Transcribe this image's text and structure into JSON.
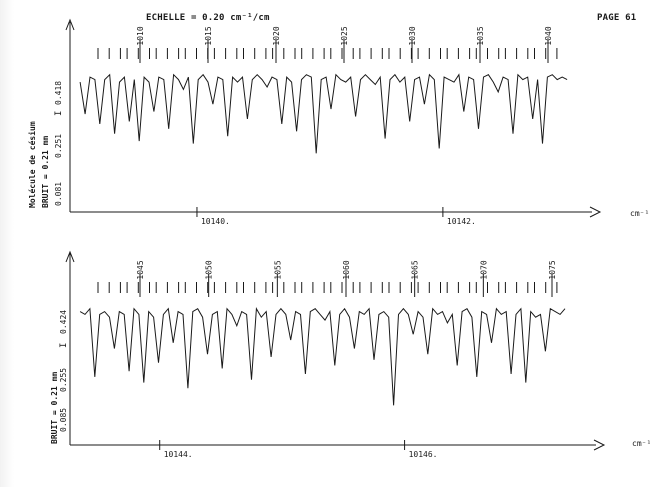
{
  "header": {
    "scale_label": "ECHELLE = 0.20 cm⁻¹/cm",
    "page_number": "PAGE 61"
  },
  "chart_data": [
    {
      "type": "line",
      "title": "",
      "molecule_label": "Molécule de césium",
      "noise_label": "BRUIT = 0.21 mm",
      "ylabel": "I",
      "y_ticks": [
        "0.081",
        "0.251",
        "0.418"
      ],
      "x_unit": "cm⁻¹",
      "x_ticks": [
        {
          "value": 10140,
          "label": "10140."
        },
        {
          "value": 10142,
          "label": "10142."
        }
      ],
      "xlim": [
        10139.0,
        10143.05
      ],
      "ylim": [
        0.0,
        0.5
      ],
      "line_numbers": [
        "1010",
        "1015",
        "1020",
        "1025",
        "1030",
        "1035",
        "1040"
      ],
      "series": [
        {
          "x": [
            10139.05,
            10139.09,
            10139.13,
            10139.17,
            10139.21,
            10139.25,
            10139.29,
            10139.33,
            10139.37,
            10139.41,
            10139.45,
            10139.49,
            10139.53,
            10139.57,
            10139.61,
            10139.65,
            10139.69,
            10139.73,
            10139.77,
            10139.81,
            10139.85,
            10139.89,
            10139.93,
            10139.97,
            10140.01,
            10140.05,
            10140.09,
            10140.13,
            10140.17,
            10140.21,
            10140.25,
            10140.29,
            10140.33,
            10140.37,
            10140.41,
            10140.45,
            10140.49,
            10140.53,
            10140.57,
            10140.61,
            10140.65,
            10140.69,
            10140.73,
            10140.77,
            10140.81,
            10140.85,
            10140.89,
            10140.93,
            10140.97,
            10141.01,
            10141.05,
            10141.09,
            10141.13,
            10141.17,
            10141.21,
            10141.25,
            10141.29,
            10141.33,
            10141.37,
            10141.41,
            10141.45,
            10141.49,
            10141.53,
            10141.57,
            10141.61,
            10141.65,
            10141.69,
            10141.73,
            10141.77,
            10141.81,
            10141.85,
            10141.89,
            10141.93,
            10141.97,
            10142.01,
            10142.05,
            10142.09,
            10142.13,
            10142.17,
            10142.21,
            10142.25,
            10142.29,
            10142.33,
            10142.37,
            10142.41,
            10142.45,
            10142.49,
            10142.53,
            10142.57,
            10142.61,
            10142.65,
            10142.69,
            10142.73,
            10142.77,
            10142.81,
            10142.85,
            10142.89,
            10142.93,
            10142.97,
            10143.01
          ],
          "y": [
            0.39,
            0.26,
            0.41,
            0.4,
            0.22,
            0.4,
            0.42,
            0.18,
            0.39,
            0.41,
            0.23,
            0.4,
            0.15,
            0.41,
            0.39,
            0.27,
            0.41,
            0.4,
            0.2,
            0.42,
            0.4,
            0.36,
            0.41,
            0.14,
            0.4,
            0.42,
            0.39,
            0.3,
            0.41,
            0.4,
            0.17,
            0.41,
            0.39,
            0.41,
            0.24,
            0.4,
            0.42,
            0.4,
            0.37,
            0.41,
            0.4,
            0.22,
            0.41,
            0.39,
            0.19,
            0.4,
            0.42,
            0.41,
            0.1,
            0.4,
            0.41,
            0.28,
            0.42,
            0.4,
            0.39,
            0.41,
            0.25,
            0.4,
            0.42,
            0.4,
            0.38,
            0.41,
            0.16,
            0.4,
            0.42,
            0.39,
            0.41,
            0.23,
            0.4,
            0.41,
            0.3,
            0.42,
            0.4,
            0.12,
            0.41,
            0.4,
            0.39,
            0.42,
            0.27,
            0.41,
            0.4,
            0.2,
            0.41,
            0.42,
            0.39,
            0.35,
            0.41,
            0.4,
            0.18,
            0.42,
            0.4,
            0.41,
            0.24,
            0.4,
            0.14,
            0.41,
            0.42,
            0.4,
            0.41,
            0.4
          ]
        }
      ]
    },
    {
      "type": "line",
      "title": "",
      "noise_label": "BRUIT = 0.21 mm",
      "ylabel": "I",
      "y_ticks": [
        "0.085",
        "0.255",
        "0.424"
      ],
      "x_unit": "cm⁻¹",
      "x_ticks": [
        {
          "value": 10144,
          "label": "10144."
        },
        {
          "value": 10146,
          "label": "10146."
        }
      ],
      "xlim": [
        10143.3,
        10147.4
      ],
      "ylim": [
        0.0,
        0.5
      ],
      "line_numbers": [
        "1045",
        "1050",
        "1055",
        "1060",
        "1065",
        "1070",
        "1075"
      ],
      "series": [
        {
          "x": [
            10143.35,
            10143.39,
            10143.43,
            10143.47,
            10143.51,
            10143.55,
            10143.59,
            10143.63,
            10143.67,
            10143.71,
            10143.75,
            10143.79,
            10143.83,
            10143.87,
            10143.91,
            10143.95,
            10143.99,
            10144.03,
            10144.07,
            10144.11,
            10144.15,
            10144.19,
            10144.23,
            10144.27,
            10144.31,
            10144.35,
            10144.39,
            10144.43,
            10144.47,
            10144.51,
            10144.55,
            10144.59,
            10144.63,
            10144.67,
            10144.71,
            10144.75,
            10144.79,
            10144.83,
            10144.87,
            10144.91,
            10144.95,
            10144.99,
            10145.03,
            10145.07,
            10145.11,
            10145.15,
            10145.19,
            10145.23,
            10145.27,
            10145.31,
            10145.35,
            10145.39,
            10145.43,
            10145.47,
            10145.51,
            10145.55,
            10145.59,
            10145.63,
            10145.67,
            10145.71,
            10145.75,
            10145.79,
            10145.83,
            10145.87,
            10145.91,
            10145.95,
            10145.99,
            10146.03,
            10146.07,
            10146.11,
            10146.15,
            10146.19,
            10146.23,
            10146.27,
            10146.31,
            10146.35,
            10146.39,
            10146.43,
            10146.47,
            10146.51,
            10146.55,
            10146.59,
            10146.63,
            10146.67,
            10146.71,
            10146.75,
            10146.79,
            10146.83,
            10146.87,
            10146.91,
            10146.95,
            10146.99,
            10147.03,
            10147.07,
            10147.11,
            10147.15,
            10147.19,
            10147.23,
            10147.27,
            10147.31
          ],
          "y": [
            0.41,
            0.4,
            0.42,
            0.18,
            0.4,
            0.41,
            0.39,
            0.28,
            0.41,
            0.4,
            0.2,
            0.42,
            0.4,
            0.16,
            0.41,
            0.39,
            0.23,
            0.4,
            0.42,
            0.3,
            0.41,
            0.4,
            0.14,
            0.41,
            0.42,
            0.39,
            0.26,
            0.4,
            0.41,
            0.21,
            0.42,
            0.4,
            0.36,
            0.41,
            0.4,
            0.17,
            0.42,
            0.39,
            0.41,
            0.25,
            0.4,
            0.42,
            0.4,
            0.31,
            0.41,
            0.4,
            0.19,
            0.41,
            0.42,
            0.4,
            0.38,
            0.41,
            0.22,
            0.4,
            0.42,
            0.39,
            0.28,
            0.41,
            0.4,
            0.42,
            0.24,
            0.4,
            0.41,
            0.39,
            0.08,
            0.4,
            0.42,
            0.4,
            0.33,
            0.41,
            0.39,
            0.26,
            0.42,
            0.4,
            0.41,
            0.37,
            0.4,
            0.22,
            0.41,
            0.42,
            0.39,
            0.18,
            0.41,
            0.4,
            0.3,
            0.42,
            0.4,
            0.41,
            0.19,
            0.4,
            0.42,
            0.16,
            0.41,
            0.39,
            0.4,
            0.27,
            0.42,
            0.41,
            0.4,
            0.42
          ]
        }
      ]
    }
  ]
}
